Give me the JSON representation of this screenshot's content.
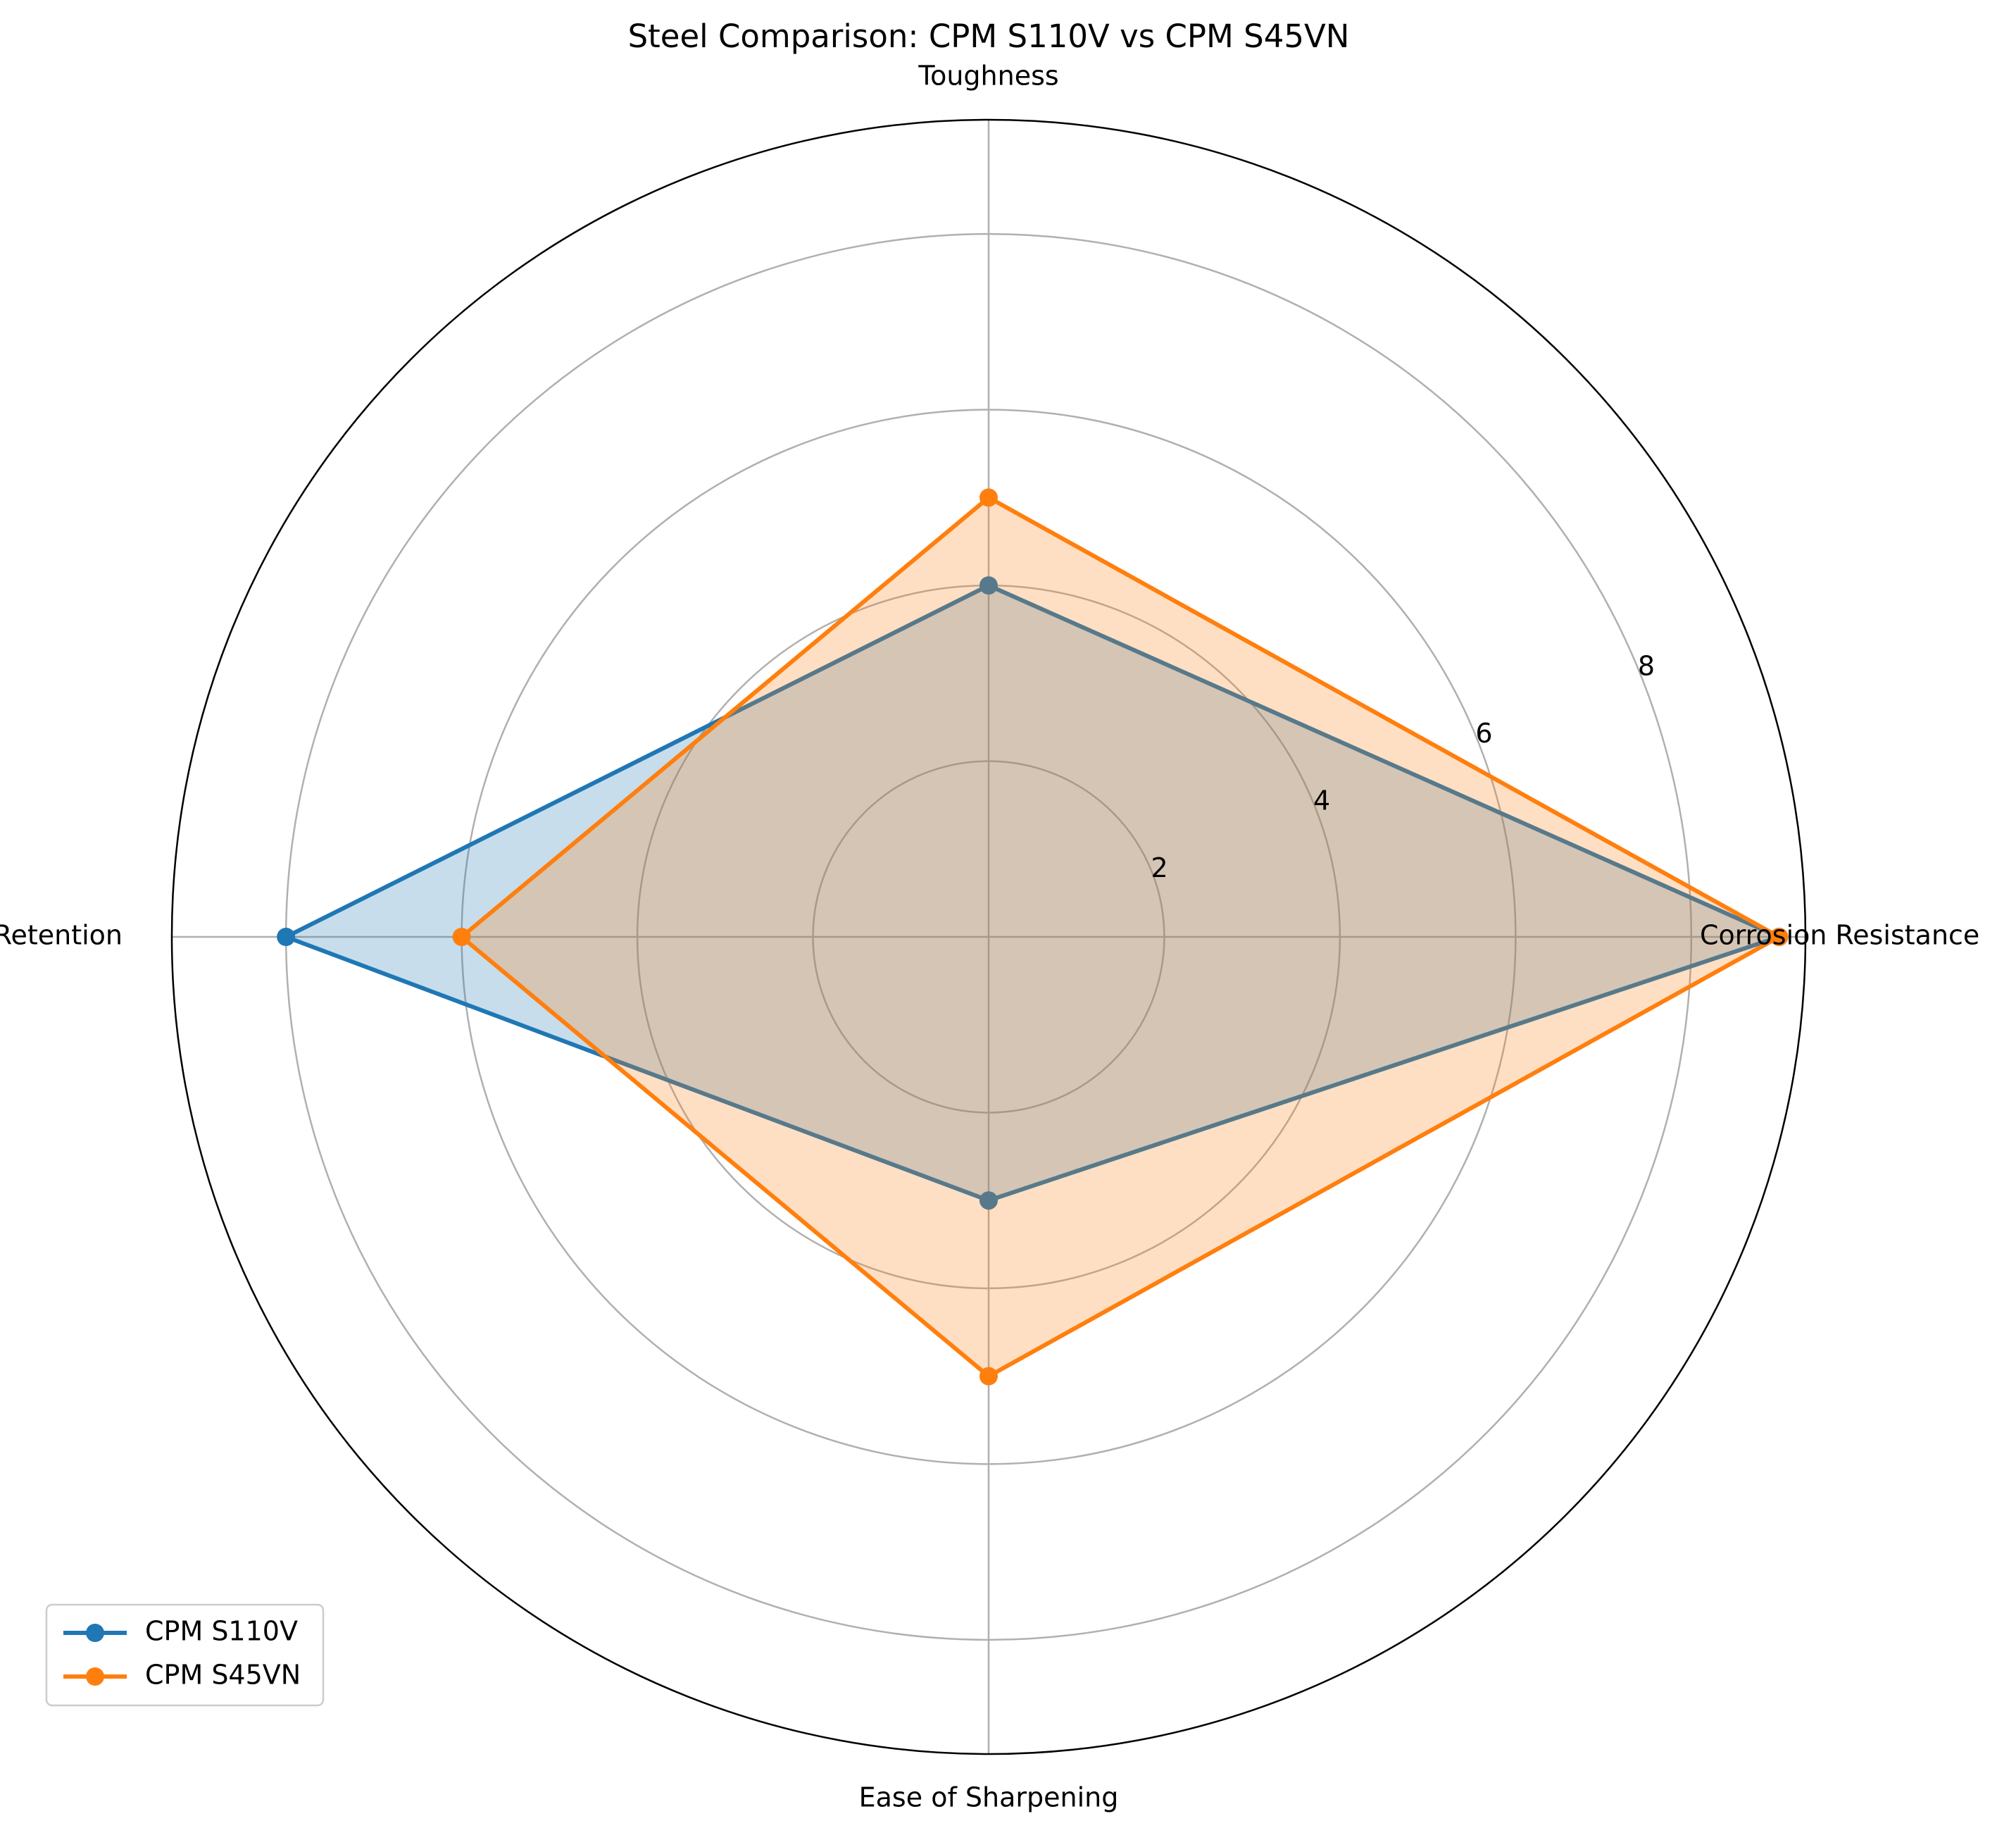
{
  "chart_data": {
    "type": "radar",
    "title": "Steel Comparison: CPM S110V vs CPM S45VN",
    "axes": [
      "Toughness",
      "Edge Retention",
      "Ease of Sharpening",
      "Corrosion Resistance"
    ],
    "radial_ticks": [
      2,
      4,
      6,
      8
    ],
    "rlim": [
      0,
      9.3
    ],
    "grid": true,
    "legend_position": "lower-left",
    "series": [
      {
        "name": "CPM S110V",
        "color": "#1f77b4",
        "values": {
          "Toughness": 4,
          "Edge Retention": 8,
          "Ease of Sharpening": 3,
          "Corrosion Resistance": 9
        }
      },
      {
        "name": "CPM S45VN",
        "color": "#ff7f0e",
        "values": {
          "Toughness": 5,
          "Edge Retention": 6,
          "Ease of Sharpening": 5,
          "Corrosion Resistance": 9
        }
      }
    ]
  }
}
